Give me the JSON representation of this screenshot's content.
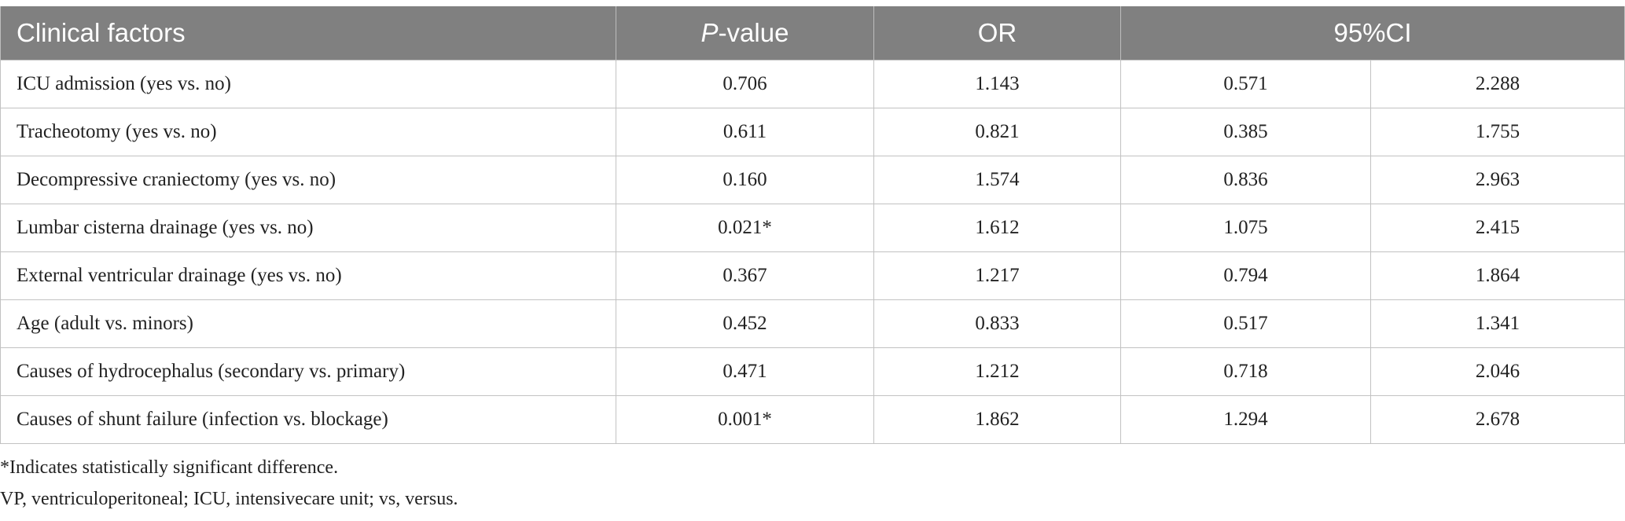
{
  "table": {
    "headers": {
      "factor": "Clinical factors",
      "p_italic": "P",
      "p_rest": "-value",
      "or": "OR",
      "ci": "95%CI"
    },
    "rows": [
      {
        "factor": "ICU admission (yes vs. no)",
        "p": "0.706",
        "or": "1.143",
        "ci_low": "0.571",
        "ci_high": "2.288"
      },
      {
        "factor": "Tracheotomy (yes vs. no)",
        "p": "0.611",
        "or": "0.821",
        "ci_low": "0.385",
        "ci_high": "1.755"
      },
      {
        "factor": "Decompressive craniectomy (yes vs. no)",
        "p": "0.160",
        "or": "1.574",
        "ci_low": "0.836",
        "ci_high": "2.963"
      },
      {
        "factor": "Lumbar cisterna drainage (yes vs. no)",
        "p": "0.021*",
        "or": "1.612",
        "ci_low": "1.075",
        "ci_high": "2.415"
      },
      {
        "factor": "External ventricular drainage (yes vs. no)",
        "p": "0.367",
        "or": "1.217",
        "ci_low": "0.794",
        "ci_high": "1.864"
      },
      {
        "factor": "Age (adult vs. minors)",
        "p": "0.452",
        "or": "0.833",
        "ci_low": "0.517",
        "ci_high": "1.341"
      },
      {
        "factor": "Causes of hydrocephalus (secondary vs. primary)",
        "p": "0.471",
        "or": "1.212",
        "ci_low": "0.718",
        "ci_high": "2.046"
      },
      {
        "factor": "Causes of shunt failure (infection vs. blockage)",
        "p": "0.001*",
        "or": "1.862",
        "ci_low": "1.294",
        "ci_high": "2.678"
      }
    ]
  },
  "footnotes": {
    "significance": "*Indicates statistically significant difference.",
    "abbreviations": "VP, ventriculoperitoneal; ICU, intensivecare unit; vs, versus."
  },
  "colors": {
    "header_bg": "#808080",
    "header_text": "#ffffff",
    "grid": "#c2c2c2"
  }
}
